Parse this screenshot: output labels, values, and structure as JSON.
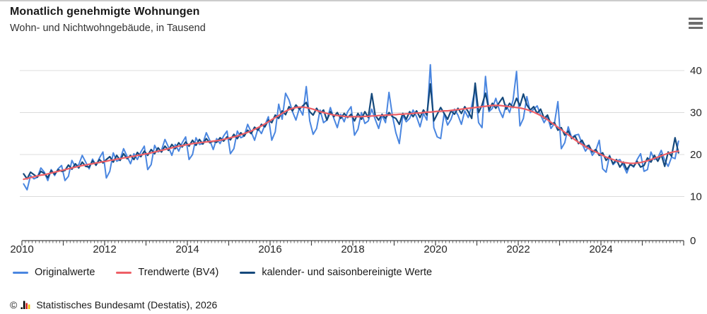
{
  "header": {
    "title": "Monatlich genehmigte Wohnungen",
    "subtitle": "Wohn- und Nichtwohngebäude, in Tausend"
  },
  "menu": {
    "icon": "hamburger-icon"
  },
  "footer": {
    "copyright": "©",
    "logo": "destatis-bar-logo",
    "source": "Statistisches Bundesamt (Destatis), 2026"
  },
  "colors": {
    "grid": "#dcdcdc",
    "axis": "#444444",
    "tick_label": "#262626",
    "original": "#4a86e0",
    "trend": "#ee5f66",
    "adjusted": "#15497c"
  },
  "chart_data": {
    "type": "line",
    "title": "Monatlich genehmigte Wohnungen",
    "subtitle": "Wohn- und Nichtwohngebäude, in Tausend",
    "unit": "Tausend",
    "x_start": {
      "year": 2010,
      "month": 1
    },
    "frequency": "monthly",
    "x_axis": {
      "tick_years": [
        2010,
        2012,
        2014,
        2016,
        2018,
        2020,
        2022,
        2024
      ],
      "range_years": [
        2010,
        2026
      ]
    },
    "y_axis": {
      "ticks": [
        0,
        10,
        20,
        30,
        40
      ],
      "range": [
        0,
        42
      ],
      "side": "right"
    },
    "grid": true,
    "legend_position": "bottom",
    "series": [
      {
        "name": "Originalwerte",
        "color": "#4a86e0",
        "width": 2,
        "values": [
          13.0,
          11.6,
          15.0,
          14.2,
          14.6,
          16.8,
          15.8,
          13.8,
          16.4,
          15.0,
          16.6,
          17.4,
          13.8,
          14.8,
          18.6,
          17.0,
          17.6,
          19.8,
          18.2,
          16.6,
          18.9,
          17.4,
          19.2,
          20.6,
          14.4,
          16.0,
          20.4,
          18.4,
          18.8,
          21.4,
          19.6,
          17.8,
          20.2,
          18.8,
          20.6,
          22.0,
          16.4,
          17.6,
          22.2,
          20.6,
          21.0,
          23.6,
          21.8,
          19.8,
          22.4,
          20.8,
          22.8,
          24.2,
          18.8,
          20.0,
          24.0,
          22.4,
          22.6,
          25.2,
          23.4,
          21.2,
          23.8,
          22.6,
          24.4,
          25.6,
          20.2,
          21.4,
          25.6,
          24.0,
          24.4,
          27.2,
          25.4,
          23.4,
          26.2,
          25.0,
          27.0,
          29.0,
          23.4,
          25.4,
          32.0,
          28.4,
          34.6,
          33.0,
          30.2,
          28.2,
          31.0,
          29.4,
          36.2,
          28.0,
          24.8,
          26.2,
          30.6,
          27.6,
          28.2,
          31.2,
          28.6,
          26.4,
          29.6,
          27.8,
          30.2,
          31.4,
          24.6,
          26.0,
          30.0,
          27.4,
          28.0,
          30.8,
          28.4,
          26.2,
          29.4,
          27.6,
          34.8,
          29.2,
          25.2,
          22.6,
          29.4,
          27.8,
          28.6,
          30.6,
          29.0,
          26.6,
          29.8,
          28.2,
          41.4,
          26.4,
          24.2,
          23.8,
          29.8,
          27.0,
          28.4,
          30.8,
          29.4,
          27.2,
          30.4,
          28.8,
          31.6,
          35.8,
          27.6,
          26.4,
          38.6,
          30.2,
          31.0,
          33.4,
          30.6,
          28.8,
          31.8,
          30.0,
          33.0,
          39.8,
          26.8,
          28.6,
          33.8,
          30.0,
          30.8,
          31.6,
          29.4,
          27.6,
          29.0,
          26.2,
          27.4,
          32.6,
          21.4,
          22.8,
          26.6,
          24.0,
          24.6,
          24.8,
          22.6,
          20.8,
          22.0,
          19.8,
          21.0,
          23.4,
          16.6,
          15.8,
          19.8,
          17.6,
          18.4,
          18.8,
          17.4,
          15.6,
          17.8,
          17.0,
          18.8,
          20.2,
          16.0,
          16.4,
          20.6,
          18.8,
          19.2,
          21.0,
          18.6,
          17.2,
          19.4,
          19.0,
          23.2
        ]
      },
      {
        "name": "Trendwerte (BV4)",
        "color": "#ee5f66",
        "width": 2.2,
        "values": [
          14.1,
          14.3,
          14.5,
          14.7,
          14.9,
          15.1,
          15.2,
          15.4,
          15.6,
          15.8,
          16.0,
          16.2,
          16.4,
          16.6,
          16.8,
          17.0,
          17.2,
          17.4,
          17.5,
          17.7,
          17.8,
          18.0,
          18.1,
          18.3,
          18.4,
          18.6,
          18.7,
          18.9,
          19.0,
          19.2,
          19.3,
          19.5,
          19.6,
          19.8,
          19.9,
          20.1,
          20.2,
          20.4,
          20.6,
          20.8,
          21.0,
          21.2,
          21.4,
          21.6,
          21.8,
          22.0,
          22.1,
          22.3,
          22.4,
          22.6,
          22.7,
          22.8,
          22.9,
          23.0,
          23.1,
          23.2,
          23.3,
          23.4,
          23.6,
          23.8,
          24.0,
          24.2,
          24.4,
          24.7,
          25.0,
          25.3,
          25.6,
          26.0,
          26.4,
          26.8,
          27.3,
          27.8,
          28.3,
          28.8,
          29.3,
          29.8,
          30.3,
          30.7,
          31.0,
          31.2,
          31.3,
          31.3,
          31.2,
          31.0,
          30.8,
          30.5,
          30.2,
          30.0,
          29.8,
          29.6,
          29.4,
          29.3,
          29.2,
          29.1,
          29.0,
          29.0,
          29.0,
          29.0,
          29.0,
          29.1,
          29.1,
          29.2,
          29.2,
          29.3,
          29.3,
          29.4,
          29.4,
          29.5,
          29.5,
          29.6,
          29.6,
          29.7,
          29.7,
          29.8,
          29.9,
          29.9,
          30.0,
          30.1,
          30.1,
          30.2,
          30.3,
          30.3,
          30.4,
          30.4,
          30.5,
          30.6,
          30.7,
          30.8,
          30.9,
          31.0,
          31.1,
          31.2,
          31.3,
          31.4,
          31.5,
          31.6,
          31.7,
          31.7,
          31.7,
          31.6,
          31.5,
          31.4,
          31.3,
          31.2,
          31.1,
          30.9,
          30.7,
          30.4,
          30.1,
          29.7,
          29.3,
          28.8,
          28.3,
          27.7,
          27.1,
          26.5,
          25.9,
          25.3,
          24.7,
          24.1,
          23.5,
          22.9,
          22.4,
          21.9,
          21.4,
          21.0,
          20.6,
          20.2,
          19.8,
          19.4,
          19.1,
          18.8,
          18.5,
          18.3,
          18.1,
          18.0,
          17.9,
          17.9,
          18.0,
          18.1,
          18.3,
          18.5,
          18.8,
          19.1,
          19.4,
          19.7,
          20.0,
          20.3,
          20.5,
          20.7,
          20.8
        ]
      },
      {
        "name": "kalender- und saisonbereinigte Werte",
        "color": "#15497c",
        "width": 2.2,
        "values": [
          15.4,
          14.2,
          15.8,
          15.2,
          14.6,
          16.0,
          15.5,
          14.5,
          16.2,
          15.3,
          16.4,
          16.0,
          16.2,
          17.5,
          16.5,
          17.8,
          16.8,
          18.2,
          17.2,
          17.0,
          18.5,
          17.5,
          18.8,
          18.0,
          18.8,
          19.5,
          18.2,
          19.8,
          18.6,
          20.2,
          19.0,
          19.8,
          18.8,
          20.5,
          19.5,
          20.8,
          19.8,
          21.2,
          20.2,
          21.6,
          20.6,
          22.0,
          21.0,
          22.4,
          21.4,
          22.8,
          21.8,
          23.0,
          22.0,
          23.4,
          22.2,
          23.6,
          22.5,
          23.8,
          22.8,
          23.2,
          22.9,
          24.0,
          23.2,
          24.2,
          23.5,
          24.8,
          23.8,
          25.2,
          24.4,
          25.8,
          25.0,
          26.5,
          25.8,
          27.2,
          26.6,
          28.2,
          27.6,
          29.4,
          28.6,
          30.4,
          29.5,
          31.4,
          30.4,
          31.8,
          30.8,
          31.6,
          32.4,
          30.2,
          29.4,
          31.0,
          29.8,
          30.6,
          28.2,
          30.2,
          29.0,
          30.0,
          28.6,
          29.8,
          28.8,
          29.6,
          28.0,
          29.8,
          28.4,
          30.2,
          28.8,
          34.5,
          29.4,
          28.2,
          29.6,
          28.6,
          30.0,
          29.0,
          28.6,
          27.2,
          29.8,
          28.4,
          30.2,
          29.0,
          30.4,
          28.8,
          30.6,
          29.4,
          36.8,
          28.0,
          29.6,
          31.2,
          29.8,
          28.4,
          30.4,
          29.6,
          31.0,
          29.8,
          31.4,
          30.2,
          28.6,
          37.0,
          30.0,
          31.8,
          34.6,
          30.6,
          32.2,
          31.0,
          32.4,
          33.6,
          30.8,
          32.2,
          31.2,
          33.4,
          31.6,
          34.4,
          31.8,
          30.6,
          31.4,
          29.8,
          30.8,
          28.6,
          29.4,
          27.2,
          27.6,
          25.8,
          26.4,
          24.6,
          25.6,
          23.8,
          24.4,
          22.6,
          23.4,
          21.8,
          22.2,
          20.6,
          21.2,
          19.8,
          20.4,
          18.6,
          19.6,
          17.8,
          18.8,
          17.0,
          18.2,
          16.4,
          17.6,
          17.2,
          18.4,
          17.0,
          17.4,
          19.2,
          18.2,
          19.8,
          18.4,
          20.0,
          17.2,
          20.6,
          19.6,
          24.0,
          20.4
        ]
      }
    ]
  }
}
